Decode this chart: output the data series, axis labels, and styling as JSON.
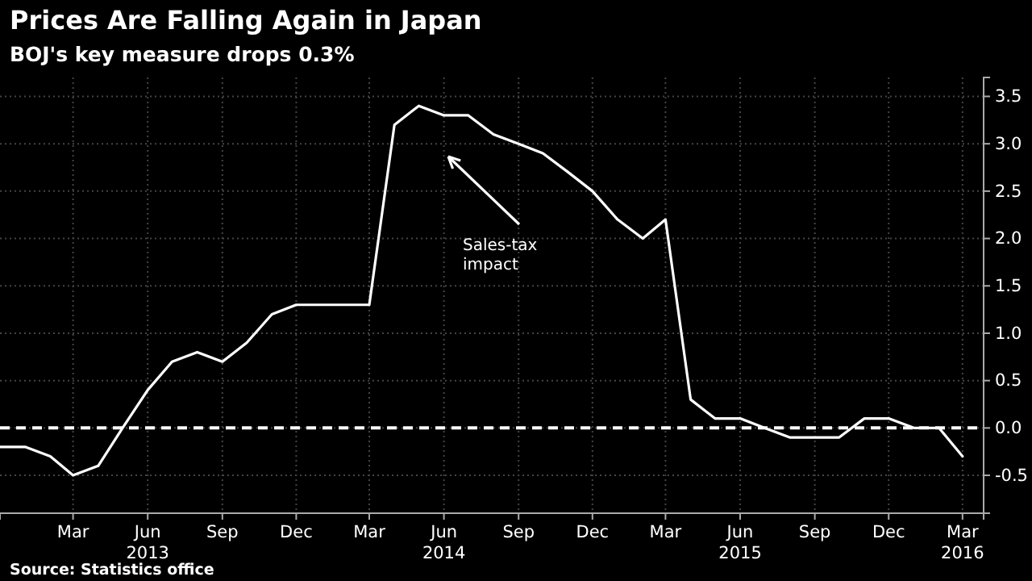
{
  "chart_data": {
    "type": "line",
    "title": "Prices Are Falling Again in Japan",
    "subtitle": "BOJ's key measure drops 0.3%",
    "annotations": [
      "Sales-tax impact",
      "Source: Statistics office"
    ],
    "x": [
      "2012-12",
      "2013-01",
      "2013-02",
      "2013-03",
      "2013-04",
      "2013-05",
      "2013-06",
      "2013-07",
      "2013-08",
      "2013-09",
      "2013-10",
      "2013-11",
      "2013-12",
      "2014-01",
      "2014-02",
      "2014-03",
      "2014-04",
      "2014-05",
      "2014-06",
      "2014-07",
      "2014-08",
      "2014-09",
      "2014-10",
      "2014-11",
      "2014-12",
      "2015-01",
      "2015-02",
      "2015-03",
      "2015-04",
      "2015-05",
      "2015-06",
      "2015-07",
      "2015-08",
      "2015-09",
      "2015-10",
      "2015-11",
      "2015-12",
      "2016-01",
      "2016-02",
      "2016-03"
    ],
    "series": [
      {
        "color": "#ffffff",
        "values": [
          -0.2,
          -0.2,
          -0.3,
          -0.5,
          -0.4,
          0.0,
          0.4,
          0.7,
          0.8,
          0.7,
          0.9,
          1.2,
          1.3,
          1.3,
          1.3,
          1.3,
          3.2,
          3.4,
          3.3,
          3.3,
          3.1,
          3.0,
          2.9,
          2.7,
          2.5,
          2.2,
          2.0,
          2.2,
          0.3,
          0.1,
          0.1,
          0.0,
          -0.1,
          -0.1,
          -0.1,
          0.1,
          0.1,
          0.0,
          0.0,
          -0.3
        ]
      }
    ],
    "xlim": [
      "2012-12",
      "2016-03-27"
    ],
    "xticks": [
      {
        "value": "2013-03",
        "label": "Mar"
      },
      {
        "value": "2013-06",
        "label": "Jun 2013"
      },
      {
        "value": "2013-09",
        "label": "Sep"
      },
      {
        "value": "2013-12",
        "label": "Dec"
      },
      {
        "value": "2014-03",
        "label": "Mar"
      },
      {
        "value": "2014-06",
        "label": "Jun 2014"
      },
      {
        "value": "2014-09",
        "label": "Sep"
      },
      {
        "value": "2014-12",
        "label": "Dec"
      },
      {
        "value": "2015-03",
        "label": "Mar"
      },
      {
        "value": "2015-06",
        "label": "Jun 2015"
      },
      {
        "value": "2015-09",
        "label": "Sep"
      },
      {
        "value": "2015-12",
        "label": "Dec"
      },
      {
        "value": "2016-03",
        "label": "Mar 2016"
      }
    ],
    "ylim": [
      -0.9,
      3.7
    ],
    "yticks": [
      -0.5,
      {
        "value": 0,
        "label": "0.0"
      },
      0.5,
      {
        "value": 1,
        "label": "1.0"
      },
      1.5,
      {
        "value": 2,
        "label": "2.0"
      },
      2.5,
      {
        "value": 3,
        "label": "3.0"
      },
      3.5
    ],
    "grid": true,
    "line_style": "solid",
    "marker": "none",
    "ref_lines": [
      {
        "axis": "y",
        "value": 0,
        "color": "#ffffff",
        "line_style": "dashed"
      }
    ]
  }
}
